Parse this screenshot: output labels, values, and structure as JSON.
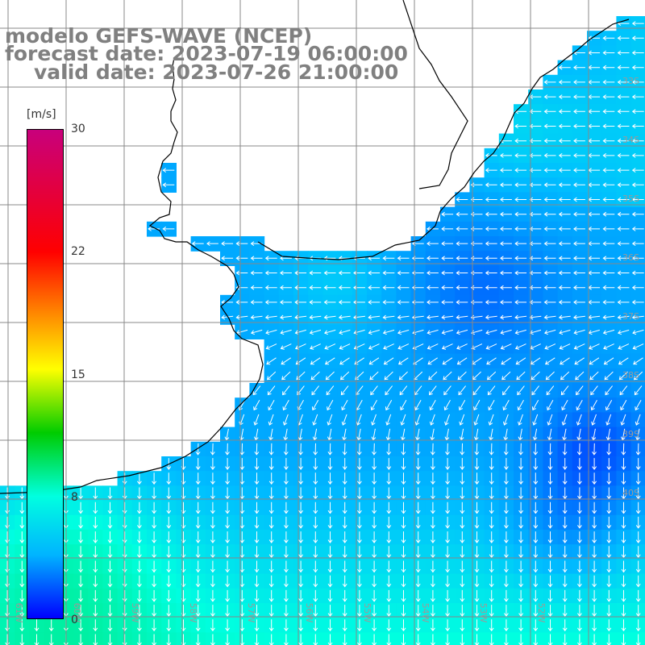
{
  "title": {
    "model": "modelo GEFS-WAVE (NCEP)",
    "forecast": "forecast date: 2023-07-19 06:00:00",
    "valid": "valid date: 2023-07-26 21:00:00"
  },
  "colorbar": {
    "unit": "[m/s]",
    "ticks": [
      "30",
      "22",
      "15",
      "8",
      "0"
    ],
    "colors": [
      "#c8007c",
      "#ff0000",
      "#ff8c00",
      "#ffff00",
      "#00cc00",
      "#00ffe0",
      "#00b4ff",
      "#0000ff"
    ]
  },
  "map": {
    "field": "wind speed",
    "units": "m/s",
    "range": [
      0,
      30
    ],
    "wind_direction_north": "easterly / north-easterly (arrows pointing west and south-west)",
    "wind_direction_south": "northerly (arrows pointing south)",
    "land_color": "#ffffff",
    "grid_color": "#808080",
    "coastline_color": "#000000",
    "lon_labels": [
      "61W",
      "60W",
      "59W",
      "58W",
      "57W",
      "56W",
      "55W",
      "54W",
      "53W",
      "52W"
    ],
    "lat_labels": [
      "33S",
      "34S",
      "35S",
      "36S",
      "37S",
      "38S",
      "39S",
      "40S"
    ]
  }
}
